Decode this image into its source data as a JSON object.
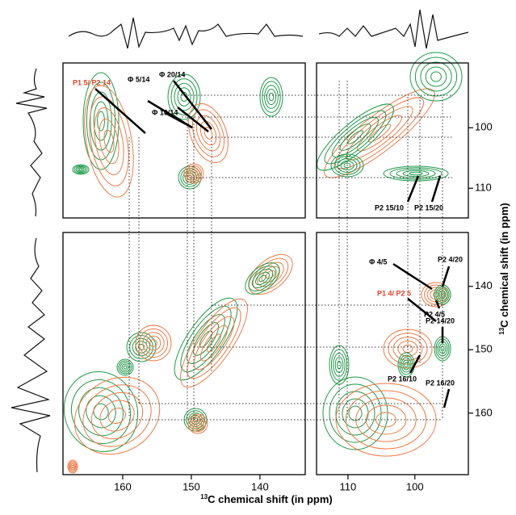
{
  "axes": {
    "x_left": {
      "xlim": [
        168.7,
        133.4
      ],
      "xticks": [
        160,
        150,
        140
      ]
    },
    "x_right": {
      "xlim": [
        114.7,
        92
      ],
      "xticks": [
        110,
        100
      ]
    },
    "y_top": {
      "ylim": [
        89.3,
        114.9
      ],
      "yticks": [
        100,
        110
      ]
    },
    "y_bottom": {
      "ylim": [
        131.5,
        169.7
      ],
      "yticks": [
        140,
        150,
        160
      ]
    }
  },
  "x_label": {
    "sup": "13",
    "text": "C chemical shift (in ppm)"
  },
  "y_label": {
    "sup": "13",
    "text": "C chemical shift (in ppm)"
  },
  "annotations": [
    {
      "text": "P1 5/ P2 14",
      "color": "#e8432a"
    },
    {
      "text": "Φ 5/14",
      "color": "#000000"
    },
    {
      "text": "Φ 20/14",
      "color": "#000000"
    },
    {
      "text": "Φ 10/14",
      "color": "#000000"
    },
    {
      "text": "P2 15/10",
      "color": "#000000"
    },
    {
      "text": "P2 15/20",
      "color": "#000000"
    },
    {
      "text": "P2 4/20",
      "color": "#000000"
    },
    {
      "text": "Φ 4/5",
      "color": "#000000"
    },
    {
      "text": "P2 4/5",
      "color": "#000000"
    },
    {
      "text": "P1 4/ P2 5",
      "color": "#e8432a"
    },
    {
      "text": "P2 14/20",
      "color": "#000000"
    },
    {
      "text": "P2 16/10",
      "color": "#000000"
    },
    {
      "text": "P2 16/20",
      "color": "#000000"
    }
  ]
}
